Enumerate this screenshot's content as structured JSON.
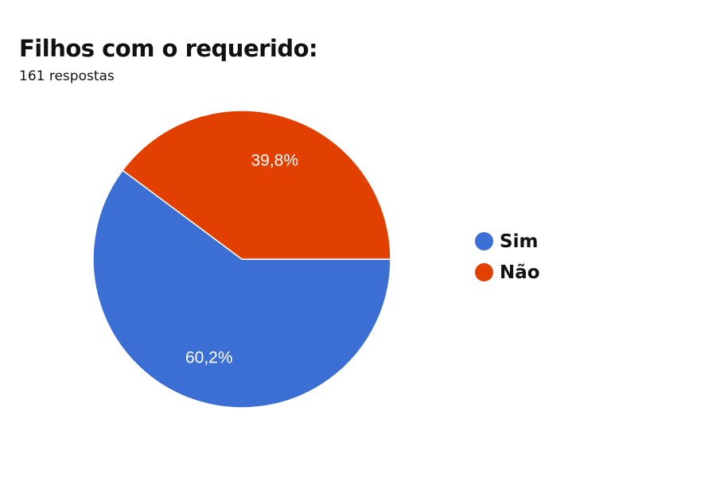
{
  "chart_data": {
    "type": "pie",
    "title": "Filhos com o requerido:",
    "subtitle": "161 respostas",
    "slices": [
      {
        "name": "Sim",
        "value": 60.2,
        "label": "60,2%",
        "color": "#3b6fd4"
      },
      {
        "name": "Não",
        "value": 39.8,
        "label": "39,8%",
        "color": "#e14000"
      }
    ],
    "legend": {
      "placement": "right",
      "items": [
        {
          "label": "Sim",
          "color": "#3b6fd4"
        },
        {
          "label": "Não",
          "color": "#e14000"
        }
      ]
    }
  }
}
